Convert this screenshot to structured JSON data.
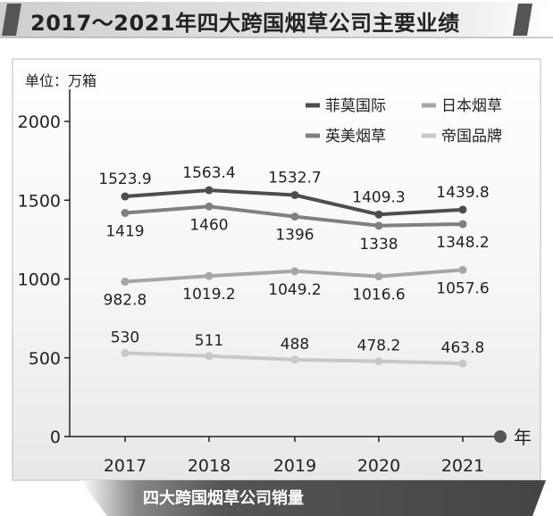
{
  "title": "2017～2021年四大跨国烟草公司主要业绩",
  "footer": "四大跨国烟草公司销量",
  "chart_data": {
    "type": "line",
    "unit_label": "单位：万箱",
    "x_unit": "年",
    "categories": [
      "2017",
      "2018",
      "2019",
      "2020",
      "2021"
    ],
    "yticks": [
      "0",
      "500",
      "1000",
      "1500",
      "2000"
    ],
    "ylim": [
      0,
      2000
    ],
    "grid": false,
    "legend_position": "top-right",
    "series": [
      {
        "name": "菲莫国际",
        "color": "#4d4d4d",
        "values": [
          1523.9,
          1563.4,
          1532.7,
          1409.3,
          1439.8
        ],
        "labels": [
          "1523.9",
          "1563.4",
          "1532.7",
          "1409.3",
          "1439.8"
        ]
      },
      {
        "name": "英美烟草",
        "color": "#808080",
        "values": [
          1419,
          1460,
          1396,
          1338,
          1348.2
        ],
        "labels": [
          "1419",
          "1460",
          "1396",
          "1338",
          "1348.2"
        ]
      },
      {
        "name": "日本烟草",
        "color": "#a6a6a6",
        "values": [
          982.8,
          1019.2,
          1049.2,
          1016.6,
          1057.6
        ],
        "labels": [
          "982.8",
          "1019.2",
          "1049.2",
          "1016.6",
          "1057.6"
        ]
      },
      {
        "name": "帝国品牌",
        "color": "#c8c8c8",
        "values": [
          530,
          511,
          488,
          478.2,
          463.8
        ],
        "labels": [
          "530",
          "511",
          "488",
          "478.2",
          "463.8"
        ]
      }
    ]
  }
}
